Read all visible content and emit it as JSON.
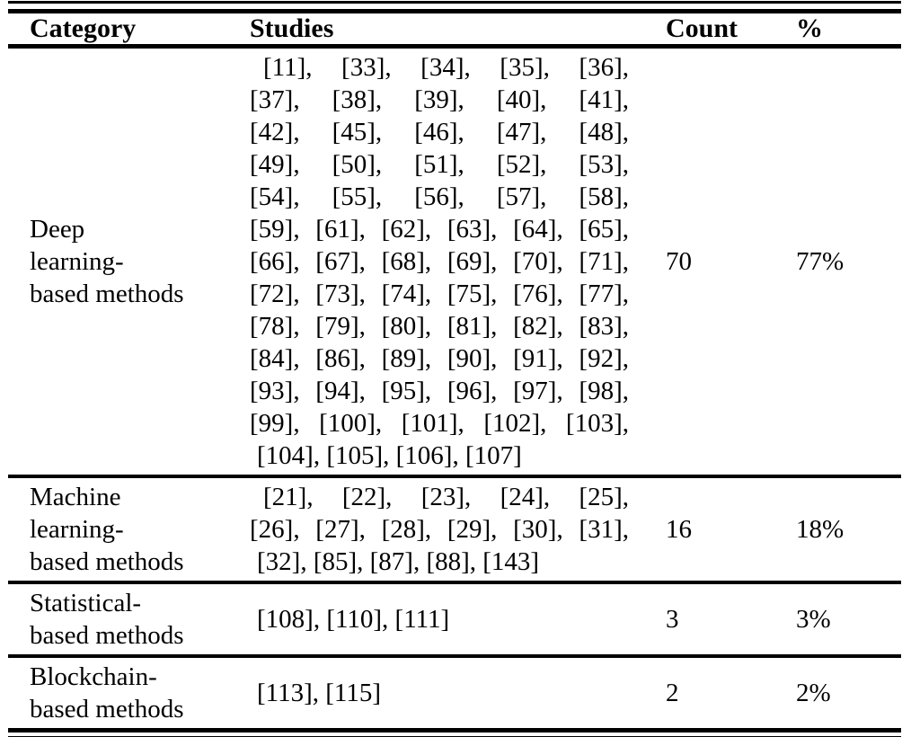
{
  "colors": {
    "background": "#ffffff",
    "text": "#000000",
    "rule": "#000000"
  },
  "table": {
    "headers": [
      "Category",
      "Studies",
      "Count",
      "%"
    ],
    "rows": [
      {
        "category": "Deep\nlearning-\nbased methods",
        "studies_main": "[11], [33], [34], [35], [36],\n[37], [38], [39], [40], [41],\n[42], [45], [46], [47], [48],\n[49], [50], [51], [52], [53],\n[54], [55], [56], [57], [58],\n[59], [61], [62], [63], [64], [65],\n[66], [67], [68], [69], [70], [71],\n[72], [73], [74], [75], [76], [77],\n[78], [79], [80], [81], [82], [83],\n[84], [86], [89], [90], [91], [92],\n[93], [94], [95], [96], [97], [98],\n[99], [100], [101], [102], [103],",
        "studies_last": "[104], [105], [106], [107]",
        "count": "70",
        "percent": "77%"
      },
      {
        "category": "Machine\nlearning-\nbased methods",
        "studies_main": "[21], [22], [23], [24], [25],\n[26], [27], [28], [29], [30], [31],",
        "studies_last": "[32], [85], [87], [88], [143]",
        "count": "16",
        "percent": "18%"
      },
      {
        "category": "Statistical-\nbased methods",
        "studies_main": "",
        "studies_last": "[108], [110], [111]",
        "count": "3",
        "percent": "3%"
      },
      {
        "category": "Blockchain-\nbased methods",
        "studies_main": "",
        "studies_last": "[113], [115]",
        "count": "2",
        "percent": "2%"
      }
    ]
  }
}
